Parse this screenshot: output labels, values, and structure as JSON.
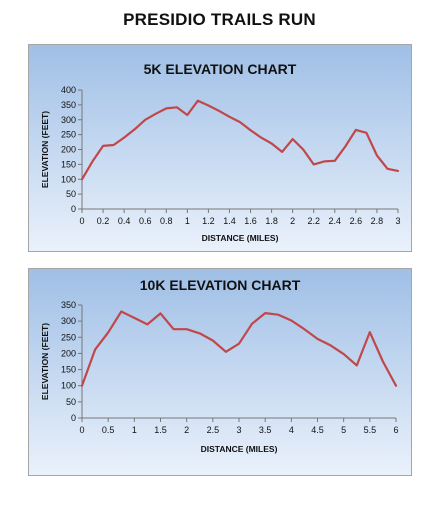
{
  "page": {
    "title": "PRESIDIO TRAILS RUN"
  },
  "style": {
    "line_color": "#C0474A",
    "panel_top": "#9fbfe6",
    "panel_bottom": "#eaf1fb"
  },
  "chart_data": [
    {
      "type": "line",
      "title": "5K ELEVATION CHART",
      "xlabel": "DISTANCE (MILES)",
      "ylabel": "ELEVATION (FEET)",
      "xlim": [
        0,
        3
      ],
      "ylim": [
        0,
        400
      ],
      "x_ticks": [
        "0",
        "0.2",
        "0.4",
        "0.6",
        "0.8",
        "1",
        "1.2",
        "1.4",
        "1.6",
        "1.8",
        "2",
        "2.2",
        "2.4",
        "2.6",
        "2.8",
        "3"
      ],
      "y_ticks": [
        "0",
        "50",
        "100",
        "150",
        "200",
        "250",
        "300",
        "350",
        "400"
      ],
      "grid": false,
      "legend": "none",
      "series": [
        {
          "x": [
            0,
            0.1,
            0.2,
            0.3,
            0.4,
            0.5,
            0.6,
            0.7,
            0.8,
            0.9,
            1.0,
            1.1,
            1.2,
            1.3,
            1.4,
            1.5,
            1.6,
            1.7,
            1.8,
            1.9,
            2.0,
            2.1,
            2.2,
            2.3,
            2.4,
            2.5,
            2.6,
            2.7,
            2.8,
            2.9,
            3.0
          ],
          "values": [
            100,
            160,
            212,
            215,
            240,
            268,
            300,
            320,
            338,
            342,
            316,
            364,
            348,
            330,
            310,
            292,
            265,
            240,
            220,
            192,
            235,
            200,
            150,
            160,
            162,
            210,
            266,
            256,
            180,
            135,
            128
          ]
        }
      ]
    },
    {
      "type": "line",
      "title": "10K ELEVATION CHART",
      "xlabel": "DISTANCE (MILES)",
      "ylabel": "ELEVATION (FEET)",
      "xlim": [
        0,
        6
      ],
      "ylim": [
        0,
        350
      ],
      "x_ticks": [
        "0",
        "0.5",
        "1",
        "1.5",
        "2",
        "2.5",
        "3",
        "3.5",
        "4",
        "4.5",
        "5",
        "5.5",
        "6"
      ],
      "y_ticks": [
        "0",
        "50",
        "100",
        "150",
        "200",
        "250",
        "300",
        "350"
      ],
      "grid": false,
      "legend": "none",
      "series": [
        {
          "x": [
            0,
            0.25,
            0.5,
            0.75,
            1.0,
            1.25,
            1.5,
            1.75,
            2.0,
            2.25,
            2.5,
            2.75,
            3.0,
            3.25,
            3.5,
            3.75,
            4.0,
            4.25,
            4.5,
            4.75,
            5.0,
            5.25,
            5.5,
            5.75,
            6.0
          ],
          "values": [
            100,
            212,
            265,
            330,
            310,
            290,
            324,
            275,
            275,
            262,
            240,
            205,
            230,
            292,
            325,
            320,
            302,
            275,
            245,
            225,
            198,
            163,
            266,
            175,
            100
          ]
        }
      ]
    }
  ]
}
